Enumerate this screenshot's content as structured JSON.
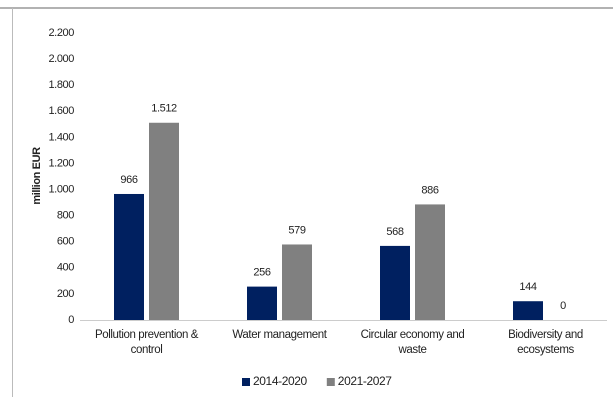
{
  "chart_data": {
    "type": "bar",
    "y_label": "million EUR",
    "categories": [
      "Pollution prevention & control",
      "Water management",
      "Circular economy and waste",
      "Biodiversity and ecosystems"
    ],
    "series": [
      {
        "name": "2014-2020",
        "color": "#002060",
        "values": [
          966,
          256,
          568,
          144
        ],
        "value_labels": [
          "966",
          "256",
          "568",
          "144"
        ]
      },
      {
        "name": "2021-2027",
        "color": "#808080",
        "values": [
          1512,
          579,
          886,
          0
        ],
        "value_labels": [
          "1.512",
          "579",
          "886",
          "0"
        ]
      }
    ],
    "ylim": [
      0,
      2200
    ],
    "yticks": [
      0,
      200,
      400,
      600,
      800,
      {
        "value": 1000,
        "label": "1.000"
      },
      {
        "value": 1200,
        "label": "1.200"
      },
      {
        "value": 1400,
        "label": "1.400"
      },
      {
        "value": 1600,
        "label": "1.600"
      },
      {
        "value": 1800,
        "label": "1.800"
      },
      {
        "value": 2000,
        "label": "2.000"
      },
      {
        "value": 2200,
        "label": "2.200"
      }
    ],
    "grid": false,
    "legend": "bottom"
  }
}
